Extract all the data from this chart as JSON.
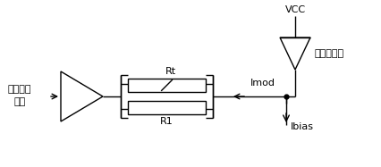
{
  "bg_color": "#ffffff",
  "line_color": "#000000",
  "text_color": "#000000",
  "label_fanend_line1": "发端输入",
  "label_fanend_line2": "信号",
  "label_laser": "激光二极管",
  "label_vcc": "VCC",
  "label_rt": "Rt",
  "label_r1": "R1",
  "label_imod": "Imod",
  "label_ibias": "Ibias",
  "font_size": 8,
  "font_size_labels": 9
}
